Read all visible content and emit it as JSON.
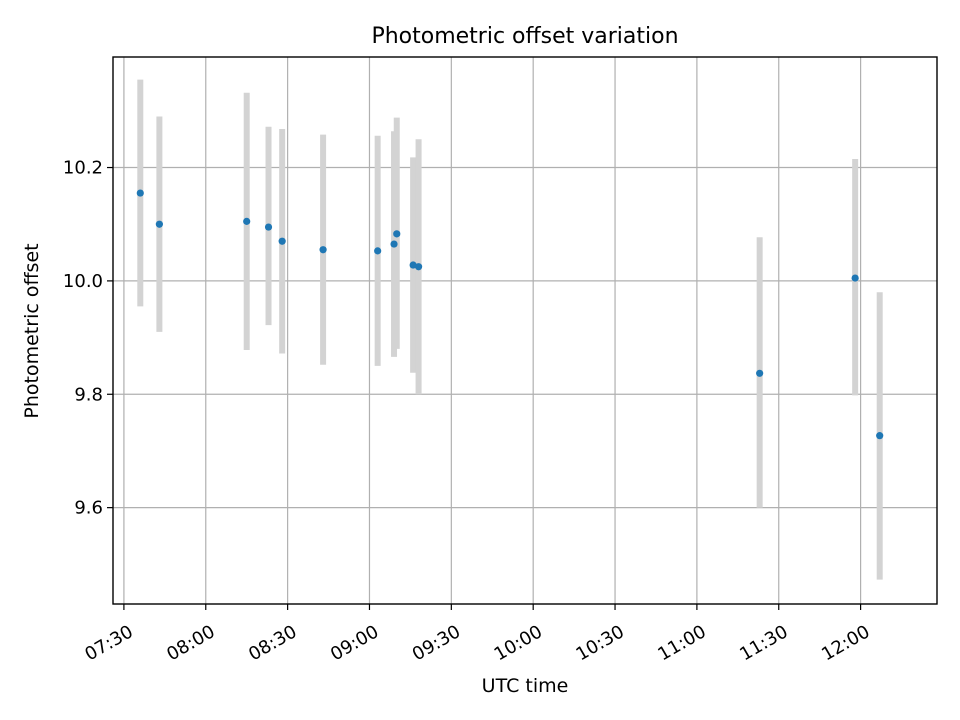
{
  "chart_data": {
    "type": "scatter",
    "title": "Photometric offset variation",
    "xlabel": "UTC time",
    "ylabel": "Photometric offset",
    "x_axis_type": "time",
    "xlim": [
      "07:26",
      "12:28"
    ],
    "ylim": [
      9.43,
      10.395
    ],
    "grid": true,
    "point_color": "#1f77b4",
    "errorbar_color": "#d3d3d3",
    "xticks": [
      "07:30",
      "08:00",
      "08:30",
      "09:00",
      "09:30",
      "10:00",
      "10:30",
      "11:00",
      "11:30",
      "12:00"
    ],
    "yticks": [
      9.6,
      9.8,
      10.0,
      10.2
    ],
    "ytick_labels": [
      "9.6",
      "9.8",
      "10.0",
      "10.2"
    ],
    "points": [
      {
        "x": "07:36",
        "y": 10.155,
        "err_low": 9.955,
        "err_high": 10.355
      },
      {
        "x": "07:43",
        "y": 10.1,
        "err_low": 9.91,
        "err_high": 10.29
      },
      {
        "x": "08:15",
        "y": 10.105,
        "err_low": 9.878,
        "err_high": 10.332
      },
      {
        "x": "08:23",
        "y": 10.095,
        "err_low": 9.922,
        "err_high": 10.272
      },
      {
        "x": "08:28",
        "y": 10.07,
        "err_low": 9.872,
        "err_high": 10.268
      },
      {
        "x": "08:43",
        "y": 10.055,
        "err_low": 9.852,
        "err_high": 10.258
      },
      {
        "x": "09:03",
        "y": 10.053,
        "err_low": 9.85,
        "err_high": 10.256
      },
      {
        "x": "09:09",
        "y": 10.065,
        "err_low": 9.866,
        "err_high": 10.264
      },
      {
        "x": "09:10",
        "y": 10.083,
        "err_low": 9.88,
        "err_high": 10.288
      },
      {
        "x": "09:16",
        "y": 10.028,
        "err_low": 9.838,
        "err_high": 10.218
      },
      {
        "x": "09:18",
        "y": 10.025,
        "err_low": 9.8,
        "err_high": 10.25
      },
      {
        "x": "11:23",
        "y": 9.837,
        "err_low": 9.6,
        "err_high": 10.077
      },
      {
        "x": "11:58",
        "y": 10.005,
        "err_low": 9.798,
        "err_high": 10.215
      },
      {
        "x": "12:07",
        "y": 9.727,
        "err_low": 9.473,
        "err_high": 9.98
      }
    ]
  }
}
